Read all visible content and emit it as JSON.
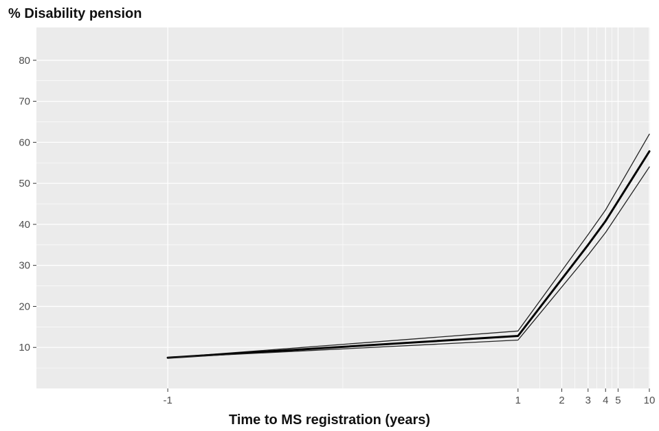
{
  "chart_data": {
    "type": "line",
    "title": "% Disability pension",
    "xlabel": "Time to MS registration (years)",
    "ylabel": "",
    "x_ticks": [
      "-1",
      "1",
      "2",
      "3",
      "4",
      "5",
      "10"
    ],
    "y_ticks": [
      "10",
      "20",
      "30",
      "40",
      "50",
      "60",
      "70",
      "80"
    ],
    "xlim": [
      -1.2,
      10.2
    ],
    "ylim": [
      0,
      88
    ],
    "grid": true,
    "x": [
      -1,
      1,
      3,
      4,
      10
    ],
    "series": [
      {
        "values": [
          7.5,
          14.0,
          37.5,
          43.5,
          62.0
        ]
      },
      {
        "values": [
          7.5,
          12.8,
          35.0,
          40.8,
          57.8
        ]
      },
      {
        "values": [
          7.5,
          11.8,
          32.5,
          38.0,
          54.0
        ]
      }
    ],
    "colors": {
      "panel": "#ebebeb",
      "grid": "#ffffff",
      "line": "#000000",
      "band": "#222222"
    }
  }
}
